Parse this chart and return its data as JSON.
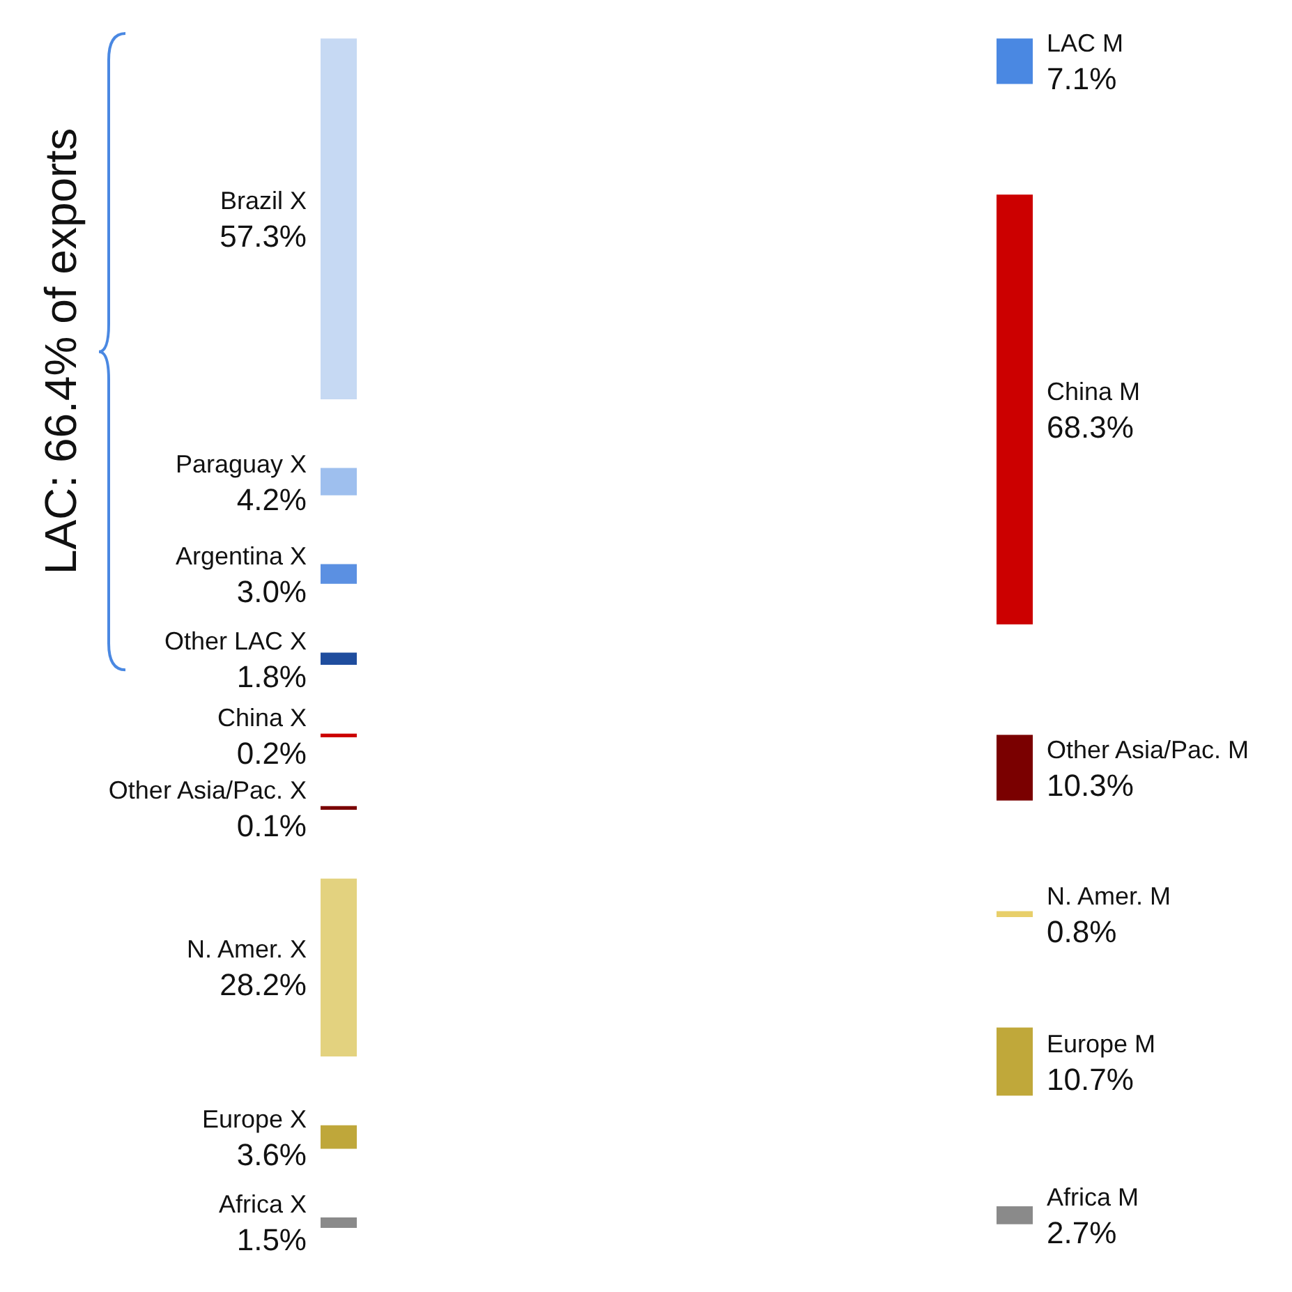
{
  "chart_data": [
    {
      "type": "other",
      "annotations": [
        "LAC: 66.4% of exports"
      ],
      "categories": [
        "Brazil X",
        "Paraguay X",
        "Argentina X",
        "Other LAC X",
        "China X",
        "Other Asia/Pac. X",
        "N. Amer. X",
        "Europe X",
        "Africa X"
      ],
      "values": [
        57.3,
        4.2,
        3.0,
        1.8,
        0.2,
        0.1,
        28.2,
        3.6,
        1.5
      ],
      "value_labels": [
        "57.3%",
        "4.2%",
        "3.0%",
        "1.8%",
        "0.2%",
        "0.1%",
        "28.2%",
        "3.6%",
        "1.5%"
      ],
      "colors": [
        "#c6d9f3",
        "#9ebfee",
        "#5b90e2",
        "#1f4d9e",
        "#cc0000",
        "#7a0000",
        "#e3d27f",
        "#bfa73a",
        "#8a8a8a"
      ]
    },
    {
      "type": "other",
      "categories": [
        "LAC M",
        "China M",
        "Other Asia/Pac. M",
        "N. Amer. M",
        "Europe M",
        "Africa M"
      ],
      "values": [
        7.1,
        68.3,
        10.3,
        0.8,
        10.7,
        2.7
      ],
      "value_labels": [
        "7.1%",
        "68.3%",
        "10.3%",
        "0.8%",
        "10.7%",
        "2.7%"
      ],
      "colors": [
        "#4a88e2",
        "#cc0000",
        "#7a0000",
        "#e8cf6a",
        "#c0a83a",
        "#8a8a8a"
      ]
    }
  ]
}
